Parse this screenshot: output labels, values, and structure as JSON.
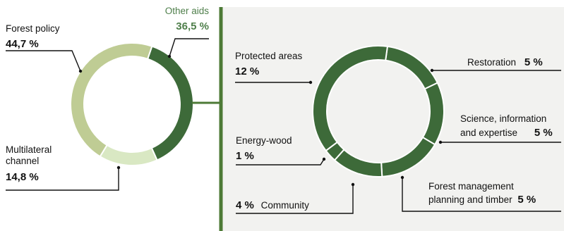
{
  "colors": {
    "dark": "#3d6a39",
    "olive": "#bfcc94",
    "pale": "#d9e8c3",
    "line": "#111111",
    "divider": "#4d7a36",
    "panel": "#f2f2f0",
    "green_text": "#4f7f4b"
  },
  "chart_data": [
    {
      "type": "pie",
      "variant": "donut",
      "slices": [
        {
          "label": "Other aids",
          "value_label": "36,5 %",
          "value": 36.5
        },
        {
          "label": "Multilateral channel",
          "value_label": "14,8 %",
          "value": 14.8
        },
        {
          "label": "Forest policy",
          "value_label": "44,7 %",
          "value": 44.7
        }
      ]
    },
    {
      "type": "pie",
      "variant": "donut",
      "slices": [
        {
          "label": "Restoration",
          "value_label": "5 %",
          "value": 5
        },
        {
          "label": "Science, information and expertise",
          "value_label": "5 %",
          "value": 5
        },
        {
          "label": "Forest management planning and timber",
          "value_label": "5 %",
          "value": 5
        },
        {
          "label": "Community",
          "value_label": "4 %",
          "value": 4
        },
        {
          "label": "Energy-wood",
          "value_label": "1 %",
          "value": 1
        },
        {
          "label": "Protected areas",
          "value_label": "12 %",
          "value": 12
        }
      ]
    }
  ],
  "labels": {
    "forest_policy": {
      "name": "Forest policy",
      "value": "44,7 %"
    },
    "other_aids": {
      "name": "Other aids",
      "value": "36,5 %"
    },
    "multilateral": {
      "line1": "Multilateral",
      "line2": "channel",
      "value": "14,8 %"
    },
    "protected": {
      "name": "Protected areas",
      "value": "12 %"
    },
    "restoration": {
      "name": "Restoration",
      "value": "5 %"
    },
    "science": {
      "line1": "Science, information",
      "line2": "and expertise",
      "value": "5 %"
    },
    "energy": {
      "name": "Energy-wood",
      "value": "1 %"
    },
    "community": {
      "name": "Community",
      "value": "4 %"
    },
    "forest_mgmt": {
      "line1": "Forest management",
      "line2": "planning and timber",
      "value": "5 %"
    }
  }
}
